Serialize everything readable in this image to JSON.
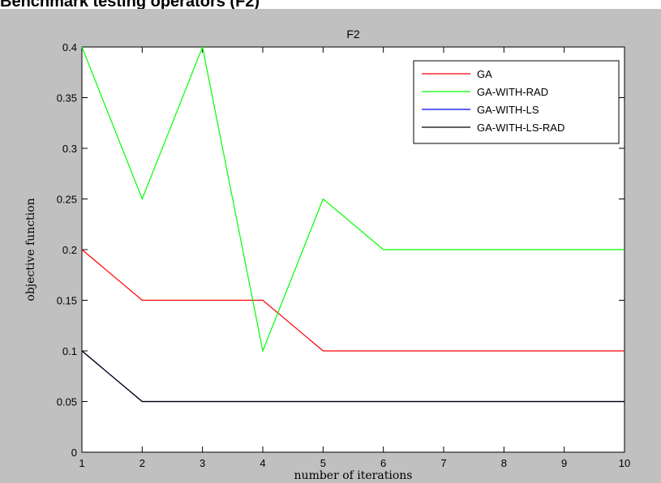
{
  "page": {
    "caption": "Benchmark testing operators (F2)"
  },
  "chart_data": {
    "type": "line",
    "title": "F2",
    "xlabel": "number of iterations",
    "ylabel": "objective function",
    "x": [
      1,
      2,
      3,
      4,
      5,
      6,
      7,
      8,
      9,
      10
    ],
    "xlim": [
      1,
      10
    ],
    "ylim": [
      0,
      0.4
    ],
    "x_ticks": [
      "1",
      "2",
      "3",
      "4",
      "5",
      "6",
      "7",
      "8",
      "9",
      "10"
    ],
    "y_ticks": [
      "0",
      "0.05",
      "0.1",
      "0.15",
      "0.2",
      "0.25",
      "0.3",
      "0.35",
      "0.4"
    ],
    "grid": false,
    "legend_position": "top-right",
    "series": [
      {
        "name": "GA",
        "color": "#ff0000",
        "values": [
          0.2,
          0.15,
          0.15,
          0.15,
          0.1,
          0.1,
          0.1,
          0.1,
          0.1,
          0.1
        ]
      },
      {
        "name": "GA-WITH-RAD",
        "color": "#00ff00",
        "values": [
          0.4,
          0.25,
          0.4,
          0.1,
          0.25,
          0.2,
          0.2,
          0.2,
          0.2,
          0.2
        ]
      },
      {
        "name": "GA-WITH-LS",
        "color": "#0000ff",
        "values": [
          0.1,
          0.05,
          0.05,
          0.05,
          0.05,
          0.05,
          0.05,
          0.05,
          0.05,
          0.05
        ]
      },
      {
        "name": "GA-WITH-LS-RAD",
        "color": "#000000",
        "values": [
          0.1,
          0.05,
          0.05,
          0.05,
          0.05,
          0.05,
          0.05,
          0.05,
          0.05,
          0.05
        ]
      }
    ]
  }
}
